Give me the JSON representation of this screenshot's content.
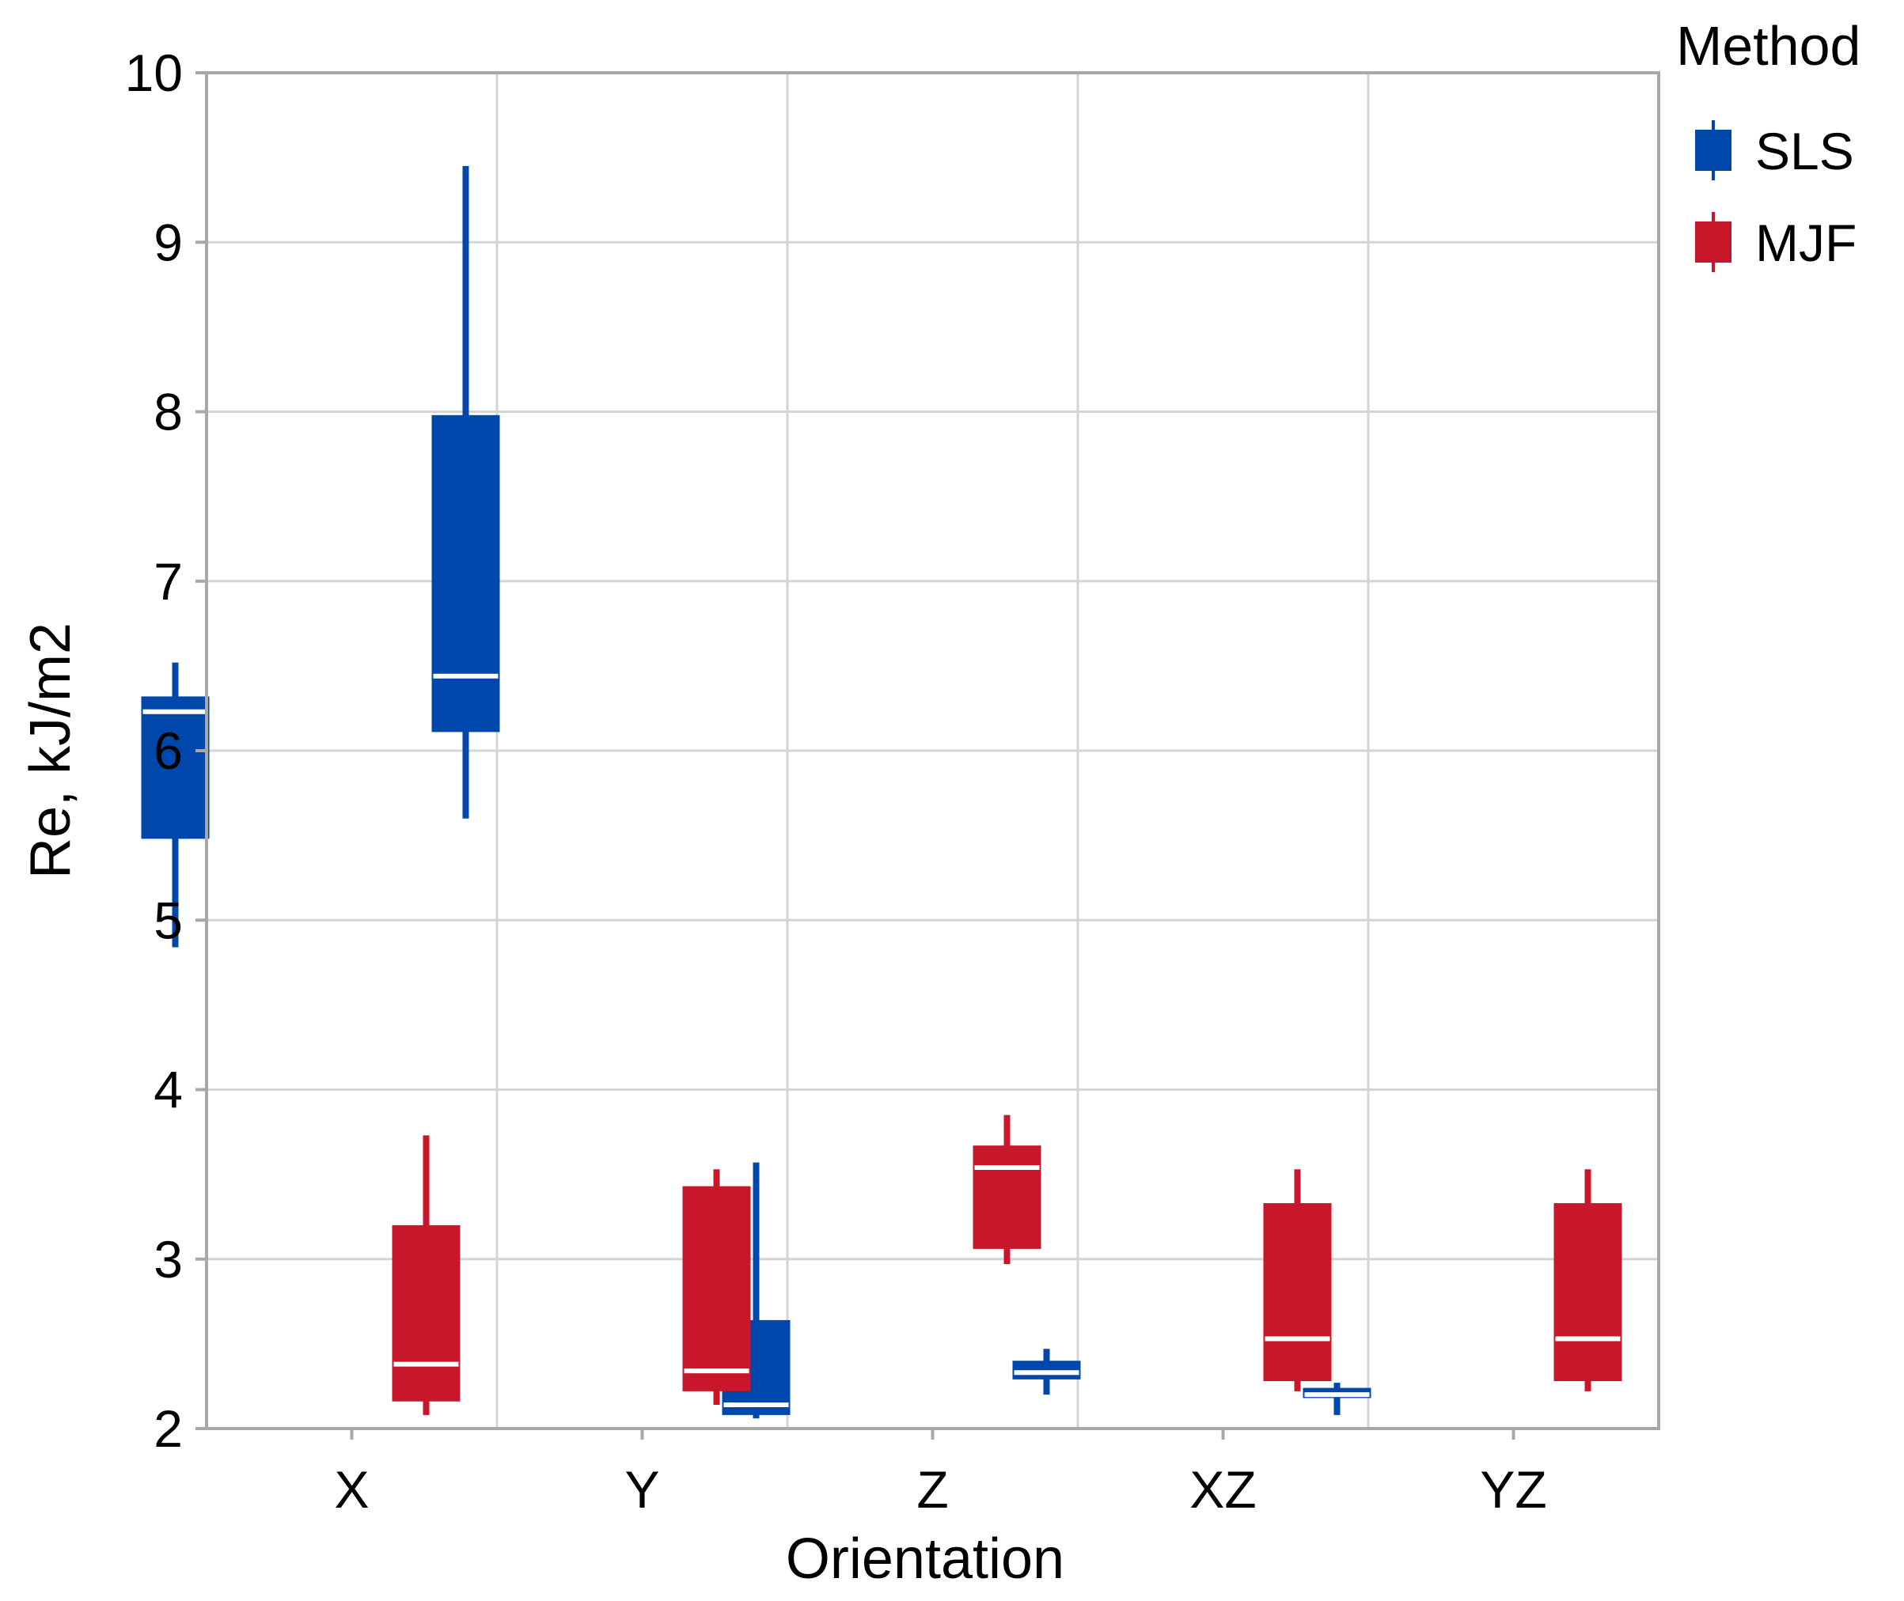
{
  "chart_data": {
    "type": "boxplot",
    "title": "",
    "xlabel": "Orientation",
    "ylabel": "Re, kJ/m2",
    "ylim": [
      2,
      10
    ],
    "yticks": [
      2,
      3,
      4,
      5,
      6,
      7,
      8,
      9,
      10
    ],
    "grid": true,
    "categories": [
      "X",
      "Y",
      "Z",
      "XZ",
      "YZ"
    ],
    "legend": {
      "title": "Method",
      "placement": "right"
    },
    "series": [
      {
        "name": "SLS",
        "color": "#0047AB",
        "boxes": [
          {
            "min": 4.84,
            "q1": 5.48,
            "median": 6.23,
            "q3": 6.32,
            "max": 6.52
          },
          {
            "min": 5.6,
            "q1": 6.11,
            "median": 6.44,
            "q3": 7.98,
            "max": 9.45
          },
          {
            "min": 2.06,
            "q1": 2.08,
            "median": 2.14,
            "q3": 2.64,
            "max": 3.57
          },
          {
            "min": 2.2,
            "q1": 2.29,
            "median": 2.33,
            "q3": 2.4,
            "max": 2.47
          },
          {
            "min": 2.08,
            "q1": 2.18,
            "median": 2.2,
            "q3": 2.24,
            "max": 2.27
          }
        ]
      },
      {
        "name": "MJF",
        "color": "#C8172B",
        "boxes": [
          {
            "min": 2.08,
            "q1": 2.16,
            "median": 2.38,
            "q3": 3.2,
            "max": 3.73
          },
          {
            "min": 2.14,
            "q1": 2.22,
            "median": 2.34,
            "q3": 3.43,
            "max": 3.53
          },
          {
            "min": 2.97,
            "q1": 3.06,
            "median": 3.54,
            "q3": 3.67,
            "max": 3.85
          },
          {
            "min": 2.22,
            "q1": 2.28,
            "median": 2.53,
            "q3": 3.33,
            "max": 3.53
          },
          {
            "min": 2.22,
            "q1": 2.28,
            "median": 2.53,
            "q3": 3.33,
            "max": 3.53
          }
        ]
      }
    ]
  }
}
